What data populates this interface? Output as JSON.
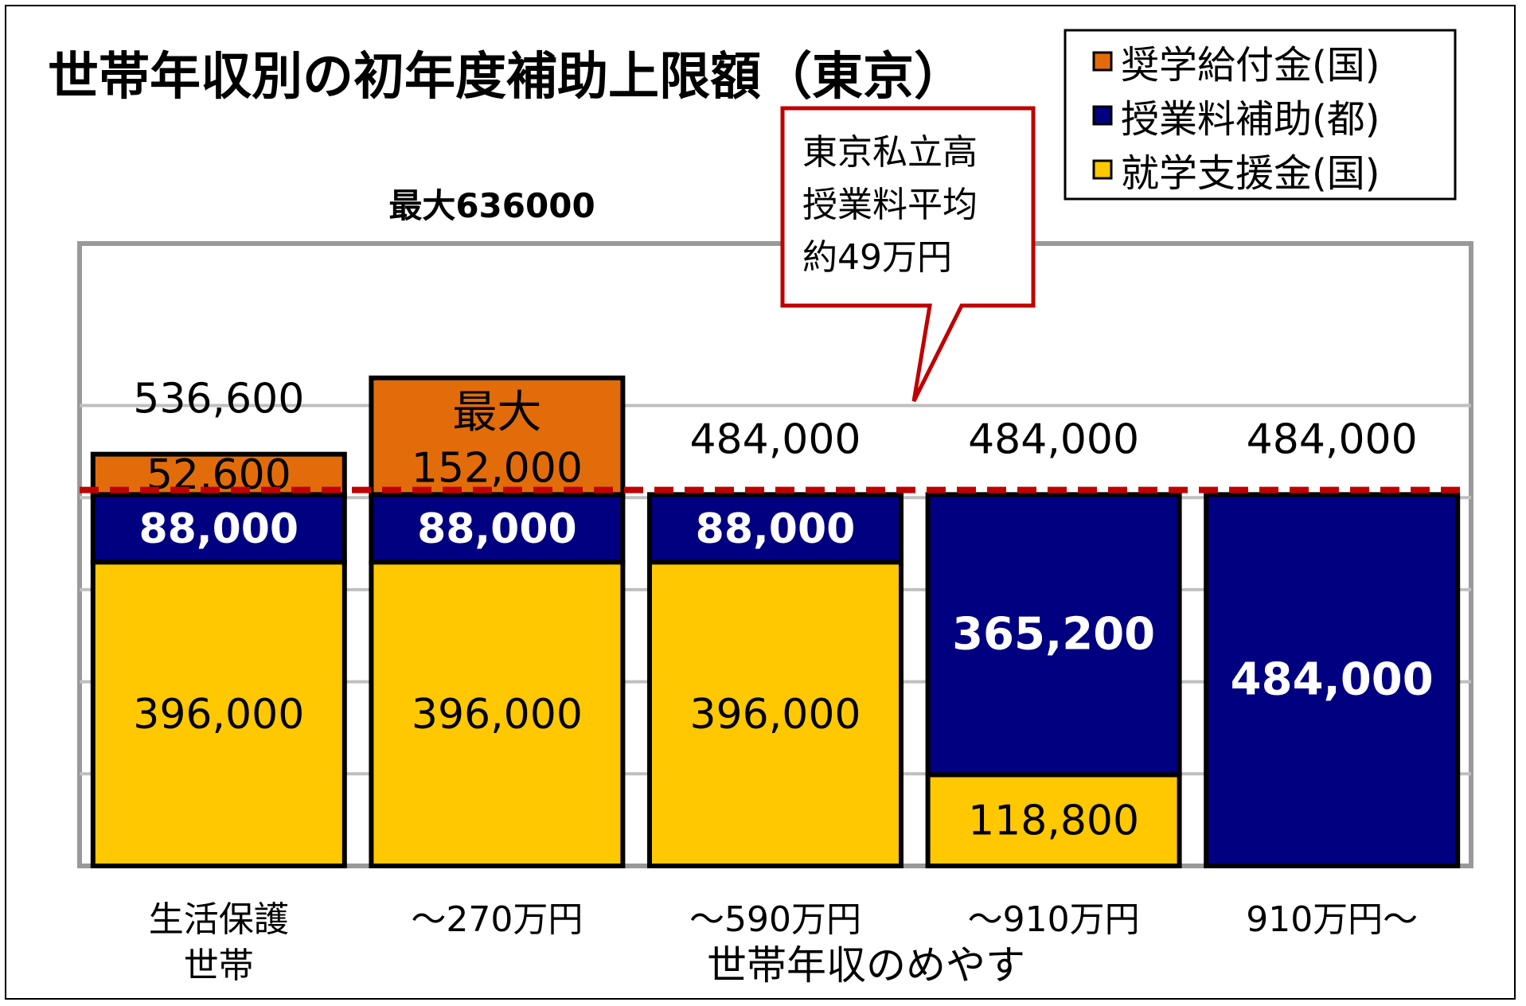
{
  "chart_data": {
    "type": "bar",
    "stacked": true,
    "title": "世帯年収別の初年度補助上限額（東京）",
    "xlabel": "世帯年収のめやす",
    "ylabel": "",
    "ylim": [
      0,
      700000
    ],
    "grid": true,
    "legend_position": "top-right",
    "categories": [
      [
        "生活保護",
        "世帯"
      ],
      [
        "～270万円"
      ],
      [
        "～590万円"
      ],
      [
        "～910万円"
      ],
      [
        "910万円～"
      ]
    ],
    "series": [
      {
        "name": "就学支援金(国)",
        "color": "#FFC800",
        "label_color": "#000000",
        "values": [
          396000,
          396000,
          396000,
          118800,
          0
        ],
        "labels": [
          "396,000",
          "396,000",
          "396,000",
          "118,800",
          ""
        ]
      },
      {
        "name": "授業料補助(都)",
        "color": "#000080",
        "label_color": "#ffffff",
        "values": [
          88000,
          88000,
          88000,
          365200,
          484000
        ],
        "labels": [
          "88,000",
          "88,000",
          "88,000",
          "365,200",
          "484,000"
        ]
      },
      {
        "name": "奨学給付金(国)",
        "color": "#E36C0A",
        "label_color": "#000000",
        "values": [
          52600,
          152000,
          0,
          0,
          0
        ],
        "labels": [
          "52,600",
          "152,000",
          "",
          "",
          ""
        ],
        "prefix_labels": [
          "",
          "最大",
          "",
          "",
          ""
        ]
      }
    ],
    "totals": [
      "536,600",
      "",
      "484,000",
      "484,000",
      "484,000"
    ],
    "max_annotation": "最大636000",
    "reference_line": {
      "value": 490000,
      "color": "#C00000",
      "callout": [
        "東京私立高",
        "授業料平均",
        "約49万円"
      ]
    },
    "legend_order": [
      "奨学給付金(国)",
      "授業料補助(都)",
      "就学支援金(国)"
    ]
  }
}
